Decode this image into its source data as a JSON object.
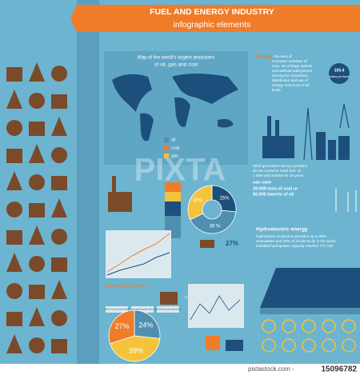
{
  "header": {
    "title": "FUEL AND ENERGY INDUSTRY",
    "subtitle": "infographic elements"
  },
  "map": {
    "title": "Map of the world's largest producers",
    "title_line2": "of oil, gas and coal",
    "legend": [
      "oil",
      "coal",
      "gas"
    ]
  },
  "energy": {
    "term": "Energy",
    "text": [
      "- the area of",
      "economic activities of",
      "man, set of large natural",
      "and artificial subsystems",
      "serving for conversion,",
      "distribution and use of",
      "energy resources of all",
      "kinds."
    ]
  },
  "price": {
    "value": "103.4",
    "unit": "dollars per barrel"
  },
  "wind": {
    "text": [
      "Wind generators during operation",
      "do not consume fossil fuel, oil.",
      "1 MW wind turbine for 20 years"
    ],
    "highlight": "can save",
    "lines": [
      "29.000 tons of coal or",
      "92.000 barrels of oil"
    ]
  },
  "donut": {
    "values": [
      25,
      39,
      30
    ],
    "value_labels": [
      "25%",
      "39 %",
      "30%"
    ]
  },
  "mine": {
    "label": "27%"
  },
  "hydro": {
    "title": "Hydroelectric energy",
    "text": [
      "Hydropower production provides up to 88%",
      "renewables and 20% of all electricity in the world.",
      "Installed hydropower capacity reaches 777 GW."
    ]
  },
  "thermal": {
    "title": "Thermal Engineering",
    "plant": "Thermal power plant",
    "types": [
      "steam turbine power plant",
      "gas turbine power plant",
      "combined-cycle power plant"
    ]
  },
  "pie": {
    "values": [
      24,
      39,
      27
    ],
    "value_labels": [
      "24%",
      "39%",
      "27%"
    ]
  },
  "watermark": "PIXTA",
  "footer": {
    "site": "pixtastock.com - ",
    "id": "15096782"
  }
}
